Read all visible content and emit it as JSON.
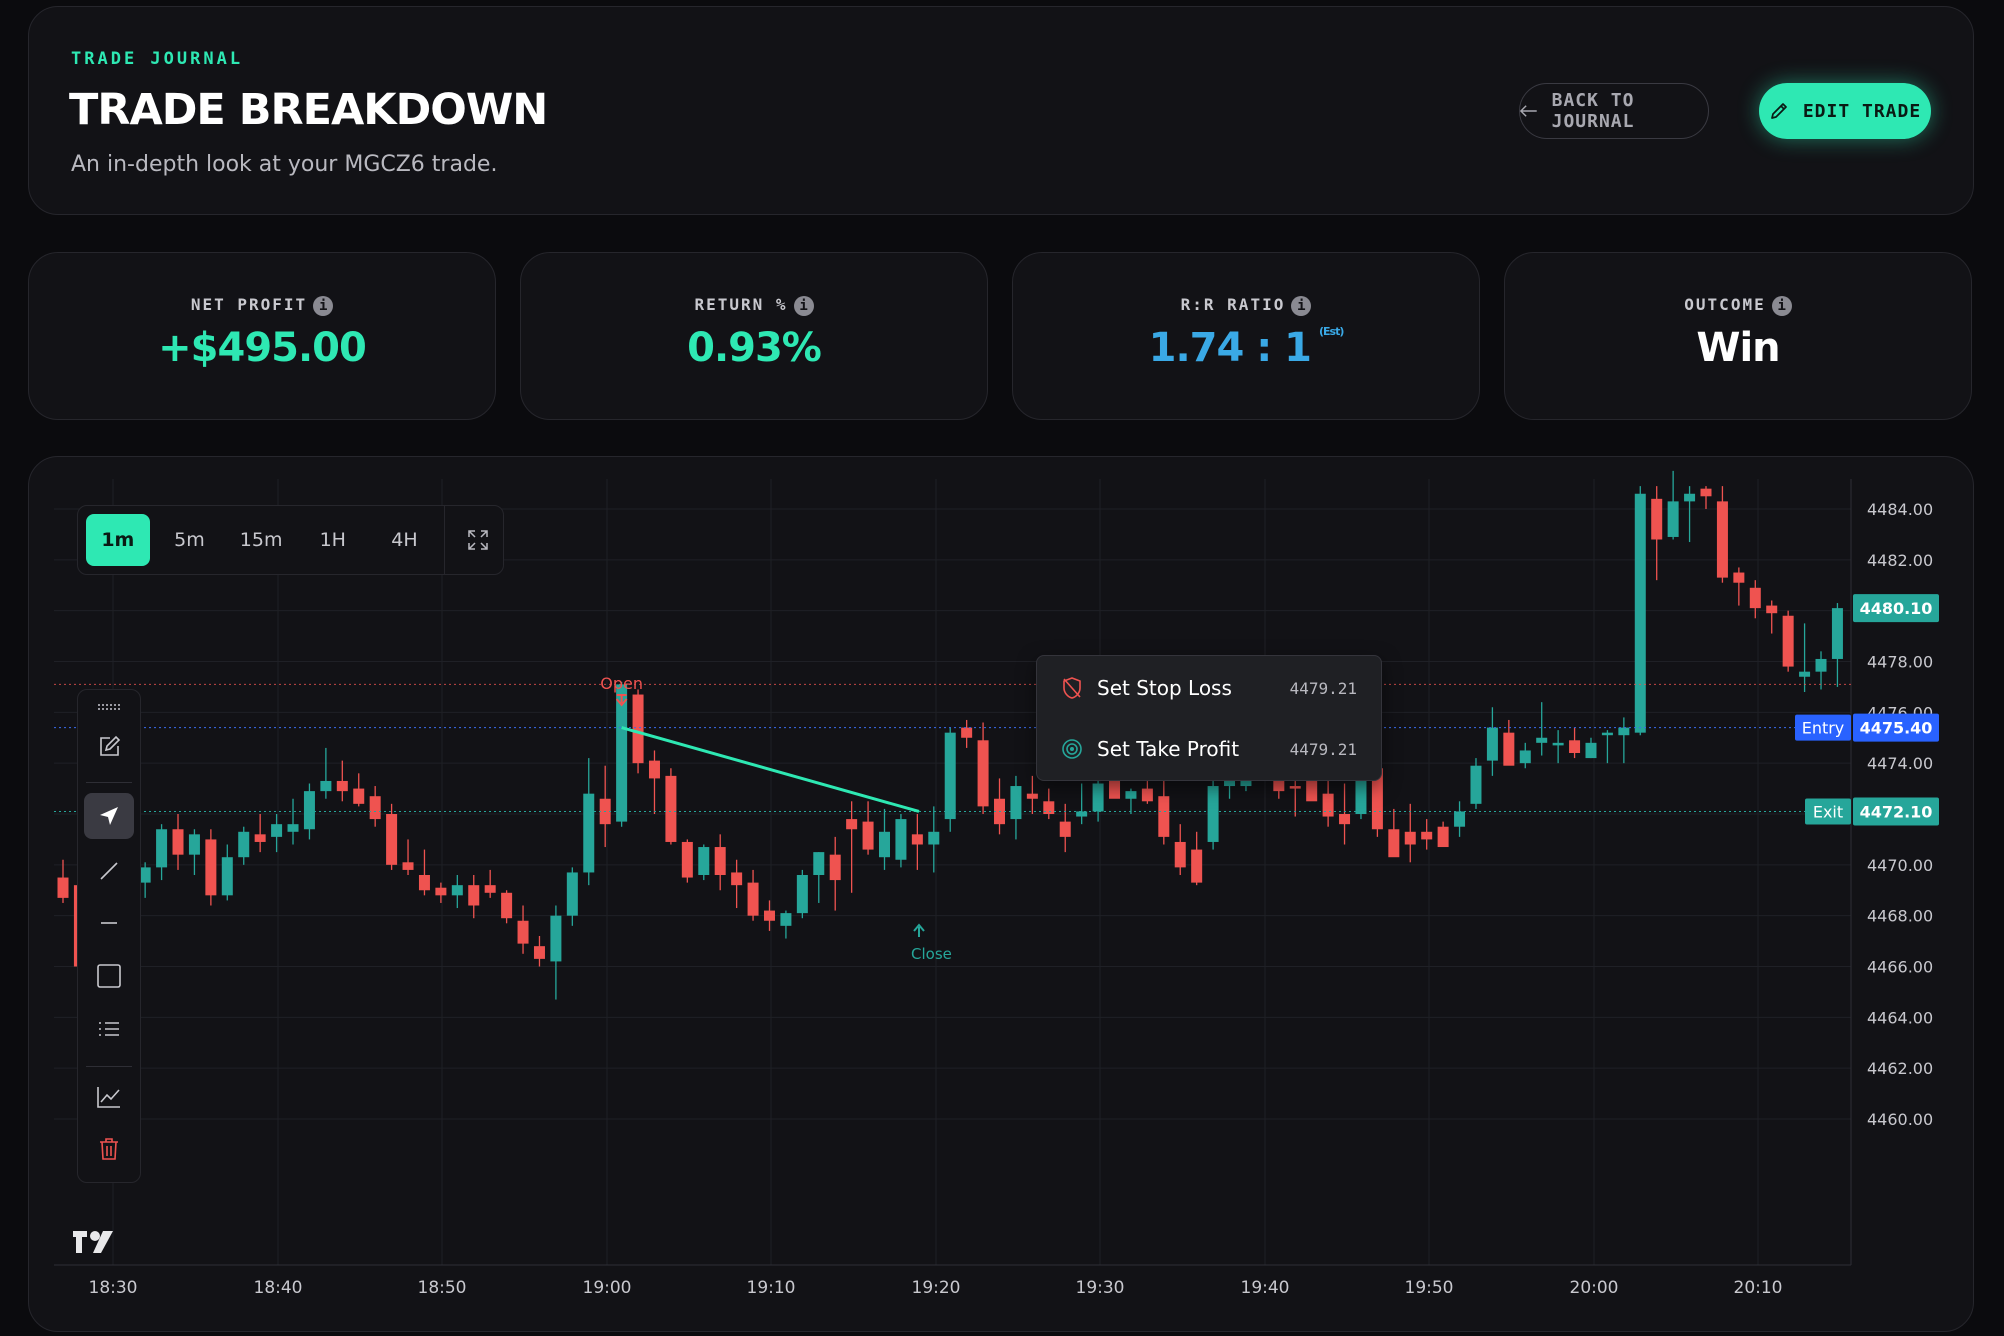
{
  "header": {
    "eyebrow": "TRADE JOURNAL",
    "title": "TRADE BREAKDOWN",
    "subtitle": "An in-depth look at your MGCZ6 trade.",
    "back_label": "BACK TO JOURNAL",
    "edit_label": "EDIT TRADE"
  },
  "stats": {
    "net_profit": {
      "label": "NET PROFIT",
      "value": "+$495.00",
      "color": "#2ee8b3"
    },
    "return_pct": {
      "label": "RETURN %",
      "value": "0.93%",
      "color": "#2ee8b3"
    },
    "rr_ratio": {
      "label": "R:R RATIO",
      "value": "1.74 : 1",
      "suffix": "(Est)",
      "color": "#3aa9e6"
    },
    "outcome": {
      "label": "OUTCOME",
      "value": "Win",
      "color": "#ffffff"
    }
  },
  "info_icon": "i",
  "timeframes": {
    "items": [
      "1m",
      "5m",
      "15m",
      "1H",
      "4H"
    ],
    "selected": "1m"
  },
  "tools": [
    "grip-icon",
    "edit-icon",
    "cursor-arrow-icon",
    "trendline-icon",
    "horizontal-line-icon",
    "rectangle-icon",
    "list-icon",
    "chart-icon",
    "trash-icon"
  ],
  "context_menu": {
    "stop_loss": {
      "label": "Set Stop Loss",
      "value": "4479.21"
    },
    "take_profit": {
      "label": "Set Take Profit",
      "value": "4479.21"
    }
  },
  "chart_data": {
    "type": "candlestick",
    "symbol": "MGCZ6",
    "x_ticks": [
      "18:30",
      "18:40",
      "18:50",
      "19:00",
      "19:10",
      "19:20",
      "19:30",
      "19:40",
      "19:50",
      "20:00",
      "20:10"
    ],
    "y_ticks": [
      "4484.00",
      "4482.00",
      "4480.00",
      "4478.00",
      "4476.00",
      "4474.00",
      "4472.00",
      "4470.00",
      "4468.00",
      "4466.00",
      "4464.00",
      "4462.00",
      "4460.00"
    ],
    "ylim": [
      4459.0,
      4484.9
    ],
    "current_price": "4480.10",
    "entry_label": "Entry",
    "entry_price": "4475.40",
    "exit_label": "Exit",
    "exit_price": "4472.10",
    "open_marker": "Open",
    "close_marker": "Close",
    "up_color": "#26a69a",
    "down_color": "#ef5350",
    "line_color": "#2ee8b3",
    "candles_ohlc": [
      [
        4469.5,
        4470.2,
        4468.5,
        4468.7
      ],
      [
        4469.2,
        4469.4,
        4465.0,
        4466.0
      ],
      [
        4468.3,
        4469.5,
        4467.5,
        4468.7
      ],
      [
        4468.7,
        4469.0,
        4467.4,
        4468.2
      ],
      [
        4468.2,
        4469.7,
        4467.4,
        4469.3
      ],
      [
        4469.3,
        4470.1,
        4468.7,
        4469.9
      ],
      [
        4469.9,
        4471.6,
        4469.4,
        4471.4
      ],
      [
        4471.4,
        4472.0,
        4469.8,
        4470.4
      ],
      [
        4470.4,
        4471.4,
        4469.6,
        4471.2
      ],
      [
        4471.0,
        4471.4,
        4468.4,
        4468.8
      ],
      [
        4468.8,
        4470.8,
        4468.6,
        4470.3
      ],
      [
        4470.3,
        4471.5,
        4470.0,
        4471.3
      ],
      [
        4471.2,
        4472.0,
        4470.5,
        4470.9
      ],
      [
        4471.1,
        4472.0,
        4470.5,
        4471.6
      ],
      [
        4471.3,
        4472.6,
        4470.8,
        4471.6
      ],
      [
        4471.4,
        4473.2,
        4471.0,
        4472.9
      ],
      [
        4472.9,
        4474.6,
        4472.6,
        4473.3
      ],
      [
        4473.3,
        4474.1,
        4472.5,
        4472.9
      ],
      [
        4473.0,
        4473.6,
        4472.3,
        4472.4
      ],
      [
        4472.7,
        4473.1,
        4471.5,
        4471.8
      ],
      [
        4472.0,
        4472.4,
        4469.8,
        4470.0
      ],
      [
        4470.1,
        4471.0,
        4469.6,
        4469.8
      ],
      [
        4469.6,
        4470.6,
        4468.8,
        4469.0
      ],
      [
        4469.1,
        4469.3,
        4468.5,
        4468.8
      ],
      [
        4468.8,
        4469.6,
        4468.3,
        4469.2
      ],
      [
        4469.2,
        4469.6,
        4467.9,
        4468.4
      ],
      [
        4469.2,
        4469.8,
        4468.7,
        4468.9
      ],
      [
        4468.9,
        4469.0,
        4467.7,
        4467.9
      ],
      [
        4467.8,
        4468.4,
        4466.5,
        4466.9
      ],
      [
        4466.8,
        4467.2,
        4466.0,
        4466.3
      ],
      [
        4466.2,
        4468.4,
        4464.7,
        4468.0
      ],
      [
        4468.0,
        4469.9,
        4467.6,
        4469.7
      ],
      [
        4469.7,
        4474.2,
        4469.2,
        4472.8
      ],
      [
        4472.6,
        4473.9,
        4470.7,
        4471.6
      ],
      [
        4471.7,
        4477.2,
        4471.5,
        4477.1
      ],
      [
        4476.7,
        4476.9,
        4473.6,
        4474.0
      ],
      [
        4474.1,
        4474.5,
        4472.0,
        4473.4
      ],
      [
        4473.5,
        4473.8,
        4470.8,
        4470.9
      ],
      [
        4470.9,
        4471.0,
        4469.3,
        4469.5
      ],
      [
        4469.6,
        4470.8,
        4469.4,
        4470.7
      ],
      [
        4470.7,
        4471.2,
        4469.0,
        4469.6
      ],
      [
        4469.7,
        4470.2,
        4468.3,
        4469.2
      ],
      [
        4469.3,
        4469.8,
        4467.8,
        4468.0
      ],
      [
        4468.2,
        4468.6,
        4467.4,
        4467.8
      ],
      [
        4467.6,
        4468.2,
        4467.1,
        4468.1
      ],
      [
        4468.1,
        4469.8,
        4467.9,
        4469.6
      ],
      [
        4469.6,
        4470.5,
        4468.5,
        4470.5
      ],
      [
        4470.4,
        4471.1,
        4468.2,
        4469.4
      ],
      [
        4471.8,
        4472.5,
        4468.9,
        4471.4
      ],
      [
        4471.7,
        4472.5,
        4470.4,
        4470.6
      ],
      [
        4470.3,
        4472.2,
        4469.8,
        4471.3
      ],
      [
        4470.2,
        4472.0,
        4469.9,
        4471.8
      ],
      [
        4471.2,
        4472.0,
        4469.8,
        4470.8
      ],
      [
        4470.8,
        4472.3,
        4469.7,
        4471.3
      ],
      [
        4471.8,
        4475.4,
        4471.3,
        4475.2
      ],
      [
        4475.4,
        4475.7,
        4474.6,
        4475.0
      ],
      [
        4474.9,
        4475.6,
        4472.0,
        4472.3
      ],
      [
        4472.6,
        4473.4,
        4471.2,
        4471.6
      ],
      [
        4471.8,
        4473.5,
        4471.0,
        4473.1
      ],
      [
        4472.8,
        4473.5,
        4472.0,
        4472.6
      ],
      [
        4472.5,
        4473.0,
        4471.8,
        4472.0
      ],
      [
        4471.7,
        4472.4,
        4470.5,
        4471.1
      ],
      [
        4471.9,
        4473.2,
        4471.6,
        4472.1
      ],
      [
        4472.1,
        4473.4,
        4471.7,
        4473.2
      ],
      [
        4473.4,
        4474.0,
        4472.7,
        4472.6
      ],
      [
        4472.6,
        4473.0,
        4472.0,
        4472.9
      ],
      [
        4473.0,
        4473.3,
        4472.4,
        4472.5
      ],
      [
        4472.7,
        4473.3,
        4470.8,
        4471.1
      ],
      [
        4470.9,
        4471.6,
        4469.6,
        4469.9
      ],
      [
        4470.6,
        4471.3,
        4469.2,
        4469.3
      ],
      [
        4470.9,
        4473.3,
        4470.6,
        4473.1
      ],
      [
        4473.1,
        4474.4,
        4472.6,
        4473.6
      ],
      [
        4473.1,
        4476.0,
        4472.9,
        4474.6
      ],
      [
        4474.7,
        4476.4,
        4474.2,
        4475.5
      ],
      [
        4475.8,
        4476.4,
        4472.6,
        4472.9
      ],
      [
        4473.1,
        4474.0,
        4471.9,
        4473.0
      ],
      [
        4473.3,
        4474.4,
        4472.6,
        4472.5
      ],
      [
        4472.8,
        4473.9,
        4471.5,
        4471.9
      ],
      [
        4472.0,
        4473.2,
        4470.8,
        4471.6
      ],
      [
        4472.0,
        4473.7,
        4471.8,
        4473.8
      ],
      [
        4473.8,
        4474.1,
        4471.1,
        4471.4
      ],
      [
        4471.4,
        4472.2,
        4470.6,
        4470.3
      ],
      [
        4471.3,
        4472.4,
        4470.1,
        4470.8
      ],
      [
        4471.3,
        4471.8,
        4470.6,
        4471.0
      ],
      [
        4471.5,
        4471.7,
        4470.9,
        4470.7
      ],
      [
        4471.5,
        4472.5,
        4471.1,
        4472.1
      ],
      [
        4472.4,
        4474.2,
        4472.2,
        4473.9
      ],
      [
        4474.1,
        4476.2,
        4473.5,
        4475.4
      ],
      [
        4475.2,
        4475.7,
        4474.0,
        4473.9
      ],
      [
        4474.0,
        4474.8,
        4473.8,
        4474.5
      ],
      [
        4474.8,
        4476.4,
        4474.3,
        4475.0
      ],
      [
        4474.7,
        4475.3,
        4474.0,
        4474.8
      ],
      [
        4474.9,
        4475.4,
        4474.2,
        4474.4
      ],
      [
        4474.2,
        4475.0,
        4474.2,
        4474.8
      ],
      [
        4475.1,
        4475.3,
        4474.0,
        4475.2
      ],
      [
        4475.1,
        4475.8,
        4474.0,
        4475.4
      ],
      [
        4475.2,
        4484.9,
        4475.1,
        4484.6
      ],
      [
        4484.4,
        4484.9,
        4481.2,
        4482.8
      ],
      [
        4482.9,
        4485.5,
        4482.8,
        4484.3
      ],
      [
        4484.3,
        4484.9,
        4482.7,
        4484.6
      ],
      [
        4484.8,
        4484.9,
        4484.0,
        4484.5
      ],
      [
        4484.3,
        4484.9,
        4481.1,
        4481.3
      ],
      [
        4481.5,
        4481.7,
        4480.2,
        4481.1
      ],
      [
        4480.9,
        4481.2,
        4479.7,
        4480.1
      ],
      [
        4480.2,
        4480.4,
        4479.1,
        4479.9
      ],
      [
        4479.8,
        4480.0,
        4477.6,
        4477.8
      ],
      [
        4477.4,
        4479.5,
        4476.8,
        4477.6
      ],
      [
        4477.6,
        4478.4,
        4476.9,
        4478.1
      ],
      [
        4478.1,
        4480.3,
        4477.0,
        4480.1
      ]
    ]
  }
}
